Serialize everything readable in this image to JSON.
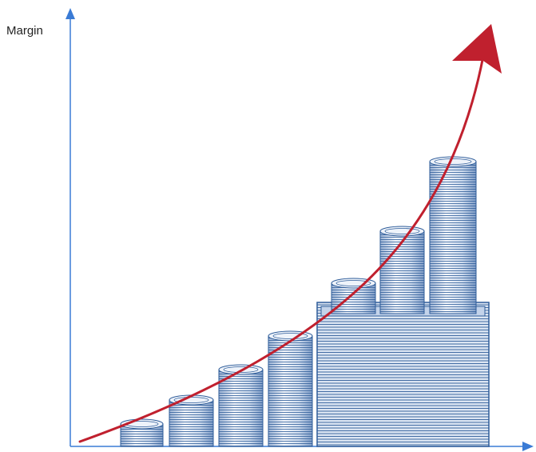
{
  "y_axis_label": "Margin",
  "colors": {
    "axis": "#3a7bd5",
    "arrow": "#c0202e",
    "coin_stroke": "#2f5d9a",
    "coin_light": "#eef3fa",
    "coin_mid": "#c9d7ea",
    "block_fill": "#dbe5f2"
  },
  "coin_stacks": [
    {
      "name": "stack-1",
      "relative_height": 0.08
    },
    {
      "name": "stack-2",
      "relative_height": 0.16
    },
    {
      "name": "stack-3",
      "relative_height": 0.25
    },
    {
      "name": "stack-4",
      "relative_height": 0.36
    },
    {
      "name": "stack-5",
      "relative_height": 0.5
    },
    {
      "name": "stack-6",
      "relative_height": 0.72
    },
    {
      "name": "stack-7",
      "relative_height": 1.0
    }
  ],
  "icons": [
    "growth-arrow-icon",
    "coin-stack-icon"
  ]
}
